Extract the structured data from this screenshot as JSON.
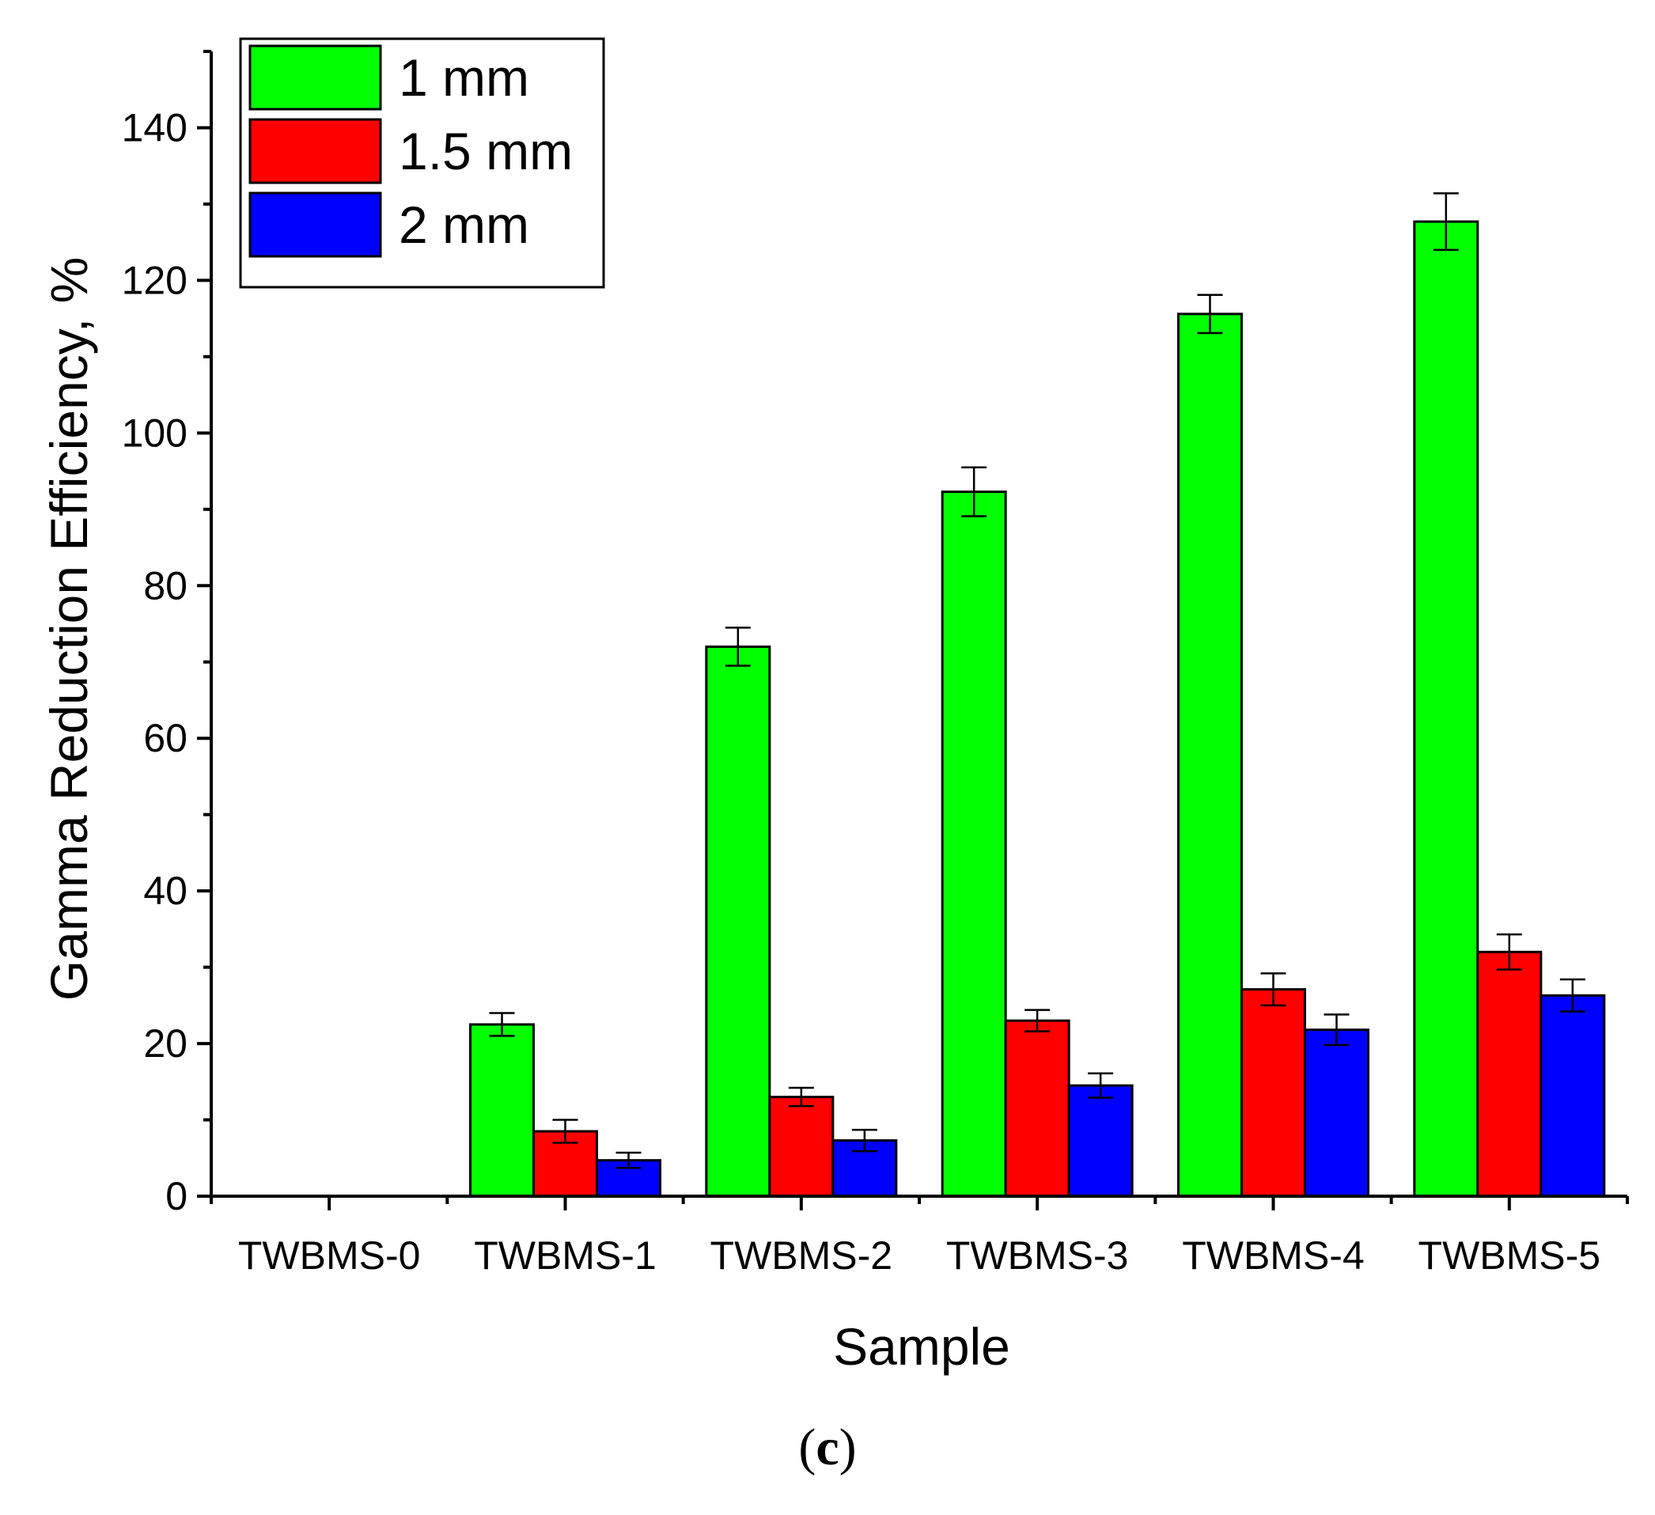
{
  "chart_data": {
    "type": "bar",
    "title": "",
    "xlabel": "Sample",
    "ylabel": "Gamma Reduction Efficiency, %",
    "categories": [
      "TWBMS-0",
      "TWBMS-1",
      "TWBMS-2",
      "TWBMS-3",
      "TWBMS-4",
      "TWBMS-5"
    ],
    "series": [
      {
        "name": "1 mm",
        "color": "#00ff00",
        "values": [
          0,
          22.5,
          72,
          92.3,
          115.6,
          127.7
        ],
        "errors": [
          0,
          1.5,
          2.5,
          3.2,
          2.5,
          3.7
        ]
      },
      {
        "name": "1.5 mm",
        "color": "#ff0000",
        "values": [
          0,
          8.5,
          13,
          23,
          27.1,
          32
        ],
        "errors": [
          0,
          1.5,
          1.2,
          1.4,
          2.1,
          2.3
        ]
      },
      {
        "name": "2 mm",
        "color": "#0000ff",
        "values": [
          0,
          4.7,
          7.3,
          14.5,
          21.8,
          26.3
        ],
        "errors": [
          0,
          1.0,
          1.4,
          1.6,
          2.0,
          2.1
        ]
      }
    ],
    "ylim": [
      0,
      150
    ],
    "yticks": [
      0,
      20,
      40,
      60,
      80,
      100,
      120,
      140
    ],
    "legend_position": "top-left",
    "grid": false
  },
  "caption": {
    "open": "(",
    "letter": "c",
    "close": ")"
  }
}
